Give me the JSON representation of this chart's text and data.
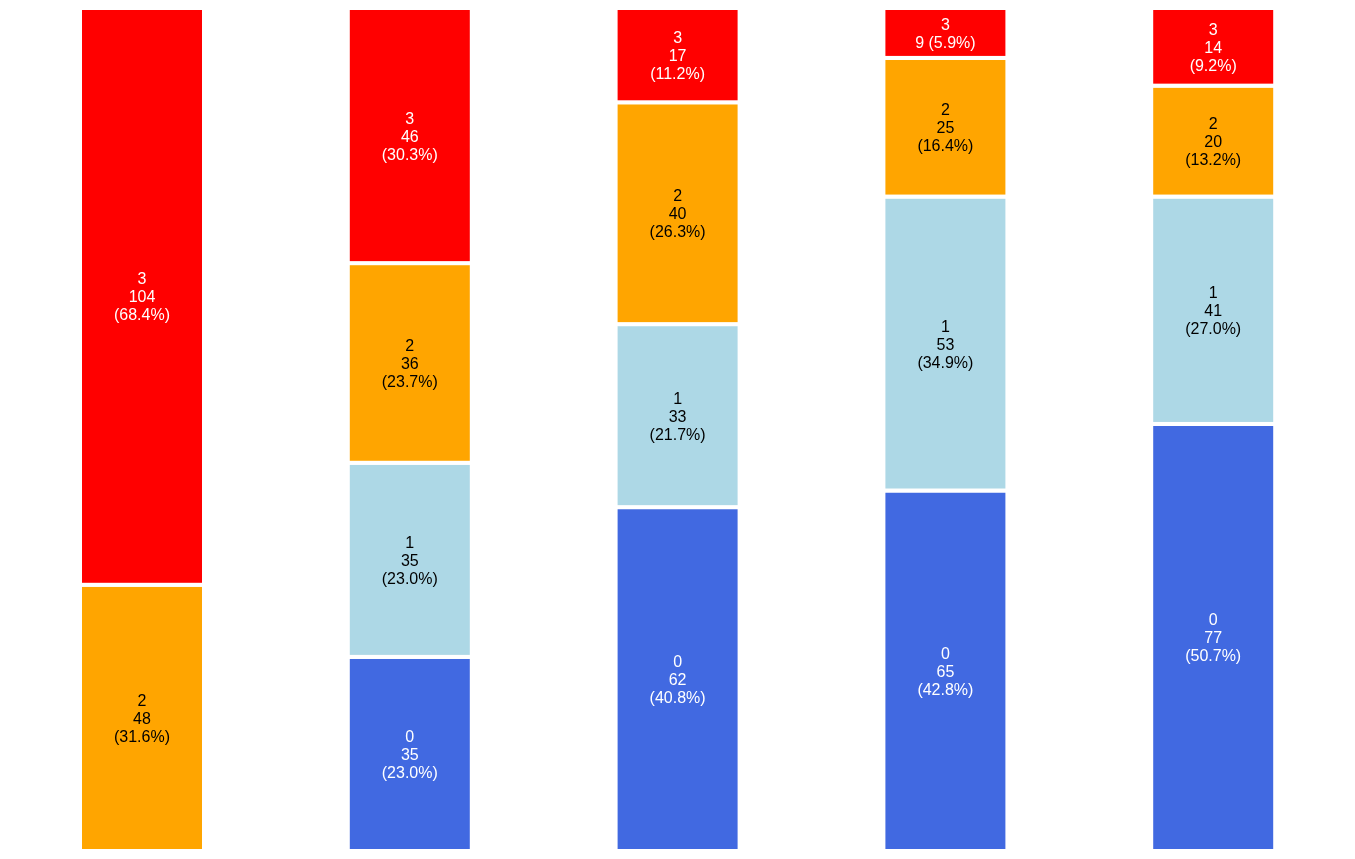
{
  "chart_data": {
    "type": "bar",
    "categories": [
      null,
      null,
      null,
      null,
      null
    ],
    "tick_labels": false,
    "stacked": true,
    "series": [
      {
        "name": "0",
        "color": "#4169e1",
        "values": [
          null,
          35,
          62,
          65,
          77
        ],
        "value_labels": [
          null,
          "35 (23.0%)",
          "62 (40.8%)",
          "65 (42.8%)",
          "77 (50.7%)"
        ]
      },
      {
        "name": "1",
        "color": "#add8e6",
        "values": [
          null,
          35,
          33,
          53,
          41
        ],
        "value_labels": [
          null,
          "35 (23.0%)",
          "33 (21.7%)",
          "53 (34.9%)",
          "41 (27.0%)"
        ]
      },
      {
        "name": "2",
        "color": "#ffa500",
        "values": [
          48,
          36,
          40,
          25,
          20
        ],
        "value_labels": [
          "48 (31.6%)",
          "36 (23.7%)",
          "40 (26.3%)",
          "25 (16.4%)",
          "20 (13.2%)"
        ]
      },
      {
        "name": "3",
        "color": "#ff0000",
        "values": [
          104,
          46,
          17,
          9,
          14
        ],
        "value_labels": [
          "104 (68.4%)",
          "46 (30.3%)",
          "17 (11.2%)",
          "9 (5.9%)",
          "14 (9.2%)"
        ]
      }
    ]
  }
}
